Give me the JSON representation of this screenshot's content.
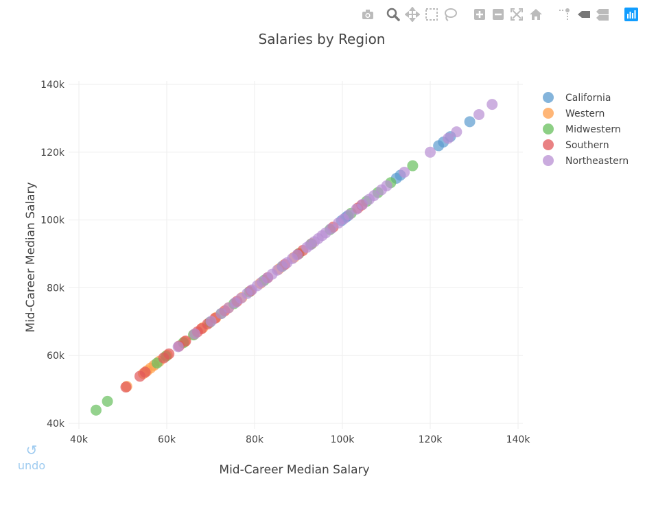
{
  "chart_data": {
    "type": "scatter",
    "title": "Salaries by Region",
    "xlabel": "Mid-Career Median Salary",
    "ylabel": "Mid-Career Median Salary",
    "xlim": [
      40000,
      140000
    ],
    "ylim": [
      40000,
      140000
    ],
    "x_ticks": [
      "40k",
      "60k",
      "80k",
      "100k",
      "120k",
      "140k"
    ],
    "y_ticks": [
      "40k",
      "60k",
      "80k",
      "100k",
      "120k",
      "140k"
    ],
    "grid": true,
    "legend_position": "top-right",
    "series": [
      {
        "name": "California",
        "color": "#5b9bcf",
        "x": [
          99800,
          100800,
          101200,
          112300,
          113200,
          121900,
          123000,
          124600,
          129000
        ],
        "y": [
          99800,
          100800,
          101200,
          112300,
          113200,
          121900,
          123000,
          124600,
          129000
        ]
      },
      {
        "name": "Western",
        "color": "#ff9e4a",
        "x": [
          50900,
          54700,
          55500,
          56300,
          57100,
          58300,
          60100,
          64100,
          66300,
          68200,
          71200,
          74100,
          77100,
          81300,
          85500,
          89000,
          93000
        ],
        "y": [
          50900,
          54700,
          55500,
          56300,
          57100,
          58300,
          60100,
          64100,
          66300,
          68200,
          71200,
          74100,
          77100,
          81300,
          85500,
          89000,
          93000
        ]
      },
      {
        "name": "Midwestern",
        "color": "#67bf5c",
        "x": [
          43900,
          46500,
          57800,
          59800,
          63800,
          66100,
          69800,
          72400,
          75300,
          78800,
          82200,
          86300,
          90100,
          92900,
          97200,
          102000,
          105500,
          108100,
          111000,
          116000
        ],
        "y": [
          43900,
          46500,
          57800,
          59800,
          63800,
          66100,
          69800,
          72400,
          75300,
          78800,
          82200,
          86300,
          90100,
          92900,
          97200,
          102000,
          105500,
          108100,
          111000,
          116000
        ]
      },
      {
        "name": "Southern",
        "color": "#e15759",
        "x": [
          50700,
          53900,
          55100,
          59300,
          60500,
          62800,
          64300,
          67000,
          67900,
          69300,
          71000,
          73200,
          76000,
          79100,
          83000,
          86900,
          89900,
          91000,
          97900,
          103500,
          104400
        ],
        "y": [
          50700,
          53900,
          55100,
          59300,
          60500,
          62800,
          64300,
          67000,
          67900,
          69300,
          71000,
          73200,
          76000,
          79100,
          83000,
          86900,
          89900,
          91000,
          97900,
          103500,
          104400
        ]
      },
      {
        "name": "Northeastern",
        "color": "#b88fd3",
        "x": [
          62600,
          66400,
          70100,
          72400,
          74100,
          75600,
          76900,
          78300,
          79400,
          80600,
          81700,
          82900,
          84000,
          85200,
          86300,
          87400,
          88600,
          89700,
          91900,
          92700,
          93600,
          94500,
          95400,
          96200,
          97400,
          99100,
          100300,
          101500,
          103200,
          104600,
          106100,
          107200,
          108900,
          110100,
          114100,
          120000,
          124100,
          126000,
          131100,
          134100
        ],
        "y": [
          62600,
          66400,
          70100,
          72400,
          74100,
          75600,
          76900,
          78300,
          79400,
          80600,
          81700,
          82900,
          84000,
          85200,
          86300,
          87400,
          88600,
          89700,
          91900,
          92700,
          93600,
          94500,
          95400,
          96200,
          97400,
          99100,
          100300,
          101500,
          103200,
          104600,
          106100,
          107200,
          108900,
          110100,
          114100,
          120000,
          124100,
          126000,
          131100,
          134100
        ]
      }
    ]
  },
  "undo": {
    "icon": "↺",
    "label": "undo"
  },
  "modebar": {
    "buttons": [
      "camera-icon",
      "zoom-icon",
      "pan-icon",
      "box-select-icon",
      "lasso-select-icon",
      "zoom-in-icon",
      "zoom-out-icon",
      "autoscale-icon",
      "reset-axes-icon",
      "spike-lines-icon",
      "hover-closest-icon",
      "hover-compare-icon",
      "plotly-logo-icon"
    ],
    "active": "zoom-icon"
  }
}
